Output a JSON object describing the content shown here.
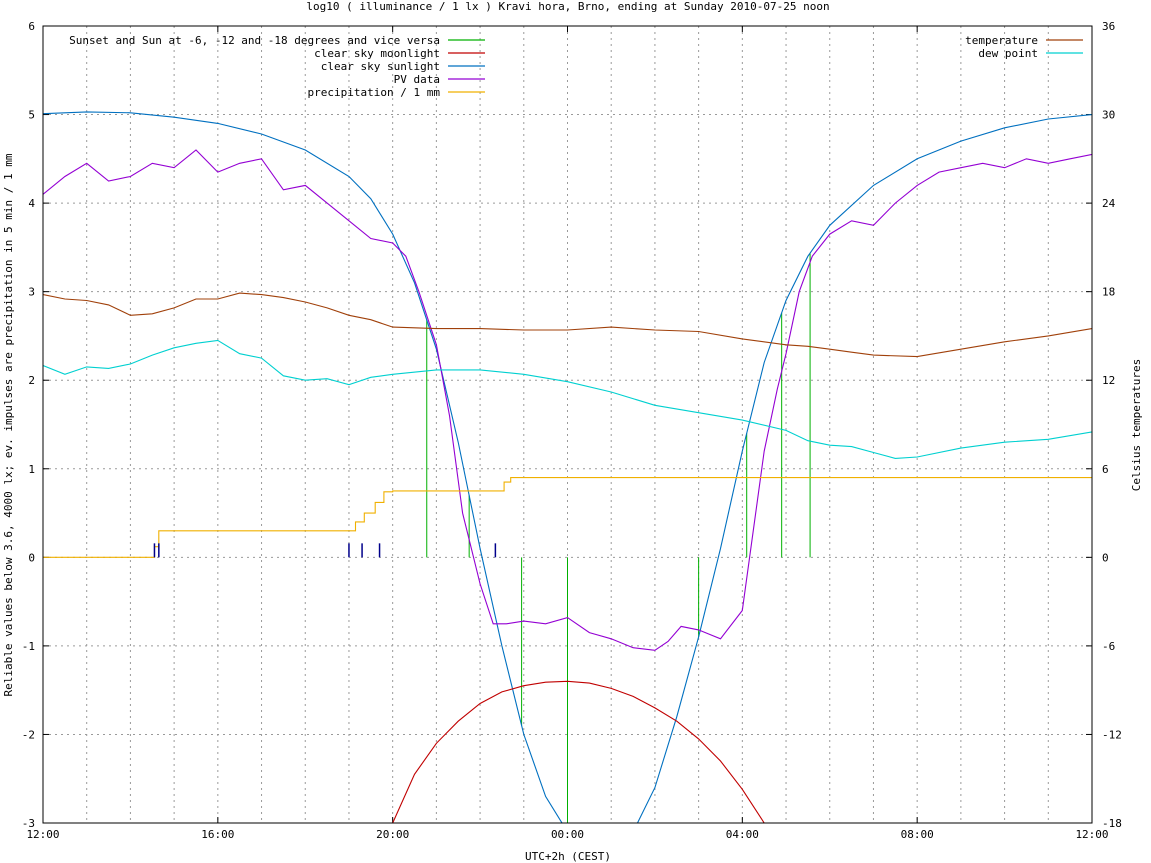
{
  "chart_data": {
    "type": "line",
    "title": "log10 ( illuminance / 1 lx ) Kravi hora, Brno, ending at Sunday 2010-07-25 noon",
    "xlabel": "UTC+2h (CEST)",
    "ylabel": "Reliable values below 3.6, 4000 lx; ev. impulses are precipitation in 5 min / 1 mm",
    "y2label": "Celsius temperatures",
    "x_unit": "hours from 12:00 start",
    "xlim": [
      0,
      24
    ],
    "ylim": [
      -3,
      6
    ],
    "y2lim": [
      -18,
      36
    ],
    "x_ticks": [
      {
        "x": 0,
        "label": "12:00"
      },
      {
        "x": 4,
        "label": "16:00"
      },
      {
        "x": 8,
        "label": "20:00"
      },
      {
        "x": 12,
        "label": "00:00"
      },
      {
        "x": 16,
        "label": "04:00"
      },
      {
        "x": 20,
        "label": "08:00"
      },
      {
        "x": 24,
        "label": "12:00"
      }
    ],
    "y_ticks": [
      "-3",
      "-2",
      "-1",
      "0",
      "1",
      "2",
      "3",
      "4",
      "5",
      "6"
    ],
    "y2_ticks": [
      "-18",
      "-12",
      "-6",
      "0",
      "6",
      "12",
      "18",
      "24",
      "30",
      "36"
    ],
    "grid": true,
    "legend_left": [
      {
        "name": "Sunset and Sun at -6, -12 and -18 degrees and vice versa",
        "color": "#00b000"
      },
      {
        "name": "clear sky moonlight",
        "color": "#c00000"
      },
      {
        "name": "clear sky sunlight",
        "color": "#0070c0"
      },
      {
        "name": "PV data",
        "color": "#9400d3"
      },
      {
        "name": "precipitation / 1 mm",
        "color": "#f0b000"
      }
    ],
    "legend_right": [
      {
        "name": "temperature",
        "color": "#a0400a"
      },
      {
        "name": "dew point",
        "color": "#00d0d0"
      }
    ],
    "series": [
      {
        "name": "clear sky sunlight",
        "color": "#0070c0",
        "axis": "left",
        "x": [
          0,
          1,
          2,
          3,
          4,
          5,
          6,
          7,
          7.5,
          8,
          8.5,
          9,
          9.5,
          10,
          10.5,
          11,
          11.5,
          12,
          12.5,
          13,
          13.5,
          14,
          14.5,
          15,
          15.5,
          16,
          16.5,
          17,
          17.5,
          18,
          19,
          20,
          21,
          22,
          23,
          24
        ],
        "y": [
          5.01,
          5.03,
          5.02,
          4.97,
          4.9,
          4.78,
          4.6,
          4.3,
          4.05,
          3.65,
          3.1,
          2.35,
          1.3,
          0.1,
          -1.0,
          -2.0,
          -2.7,
          -3.1,
          -3.5,
          -3.5,
          -3.1,
          -2.6,
          -1.8,
          -0.9,
          0.1,
          1.2,
          2.2,
          2.9,
          3.4,
          3.75,
          4.2,
          4.5,
          4.7,
          4.85,
          4.95,
          5.0
        ]
      },
      {
        "name": "clear sky moonlight",
        "color": "#c00000",
        "axis": "left",
        "x": [
          8,
          8.5,
          9,
          9.5,
          10,
          10.5,
          11,
          11.5,
          12,
          12.5,
          13,
          13.5,
          14,
          14.5,
          15,
          15.5,
          16,
          16.5
        ],
        "y": [
          -3.0,
          -2.45,
          -2.1,
          -1.85,
          -1.65,
          -1.52,
          -1.45,
          -1.41,
          -1.4,
          -1.42,
          -1.48,
          -1.57,
          -1.7,
          -1.85,
          -2.05,
          -2.3,
          -2.62,
          -3.0
        ]
      },
      {
        "name": "PV data",
        "color": "#9400d3",
        "axis": "left",
        "x": [
          0,
          0.5,
          1,
          1.5,
          2,
          2.5,
          3,
          3.5,
          4,
          4.5,
          5,
          5.5,
          6,
          6.5,
          7,
          7.5,
          8,
          8.3,
          8.6,
          9,
          9.3,
          9.6,
          10,
          10.3,
          10.6,
          11,
          11.5,
          12,
          12.5,
          13,
          13.5,
          14,
          14.3,
          14.6,
          15,
          15.5,
          16,
          16.5,
          16.8,
          17,
          17.3,
          17.6,
          18,
          18.5,
          19,
          19.5,
          20,
          20.5,
          21,
          21.5,
          22,
          22.5,
          23,
          23.5,
          24
        ],
        "y": [
          4.1,
          4.3,
          4.45,
          4.25,
          4.3,
          4.45,
          4.4,
          4.6,
          4.35,
          4.45,
          4.5,
          4.15,
          4.2,
          4.0,
          3.8,
          3.6,
          3.55,
          3.4,
          3.0,
          2.4,
          1.6,
          0.5,
          -0.3,
          -0.75,
          -0.75,
          -0.72,
          -0.75,
          -0.68,
          -0.85,
          -0.92,
          -1.02,
          -1.05,
          -0.95,
          -0.78,
          -0.82,
          -0.92,
          -0.6,
          1.2,
          1.9,
          2.3,
          3.0,
          3.4,
          3.65,
          3.8,
          3.75,
          4.0,
          4.2,
          4.35,
          4.4,
          4.45,
          4.4,
          4.5,
          4.45,
          4.5,
          4.55
        ]
      },
      {
        "name": "precipitation / 1 mm",
        "color": "#f0b000",
        "axis": "left",
        "x": [
          0,
          2.4,
          2.55,
          2.65,
          7.0,
          7.15,
          7.35,
          7.6,
          7.8,
          8.0,
          9.0,
          10.0,
          10.4,
          10.55,
          10.7,
          12.0,
          16.0,
          20.0,
          24.0
        ],
        "y": [
          0,
          0,
          0.12,
          0.3,
          0.3,
          0.4,
          0.5,
          0.62,
          0.74,
          0.75,
          0.75,
          0.75,
          0.75,
          0.85,
          0.9,
          0.9,
          0.9,
          0.9,
          0.9
        ]
      },
      {
        "name": "temperature",
        "color": "#a0400a",
        "axis": "right",
        "x": [
          0,
          0.5,
          1,
          1.5,
          2,
          2.5,
          3,
          3.5,
          4,
          4.5,
          5,
          5.5,
          6,
          6.5,
          7,
          7.5,
          8,
          9,
          10,
          11,
          12,
          13,
          14,
          15,
          16,
          17,
          17.5,
          18,
          18.5,
          19,
          20,
          21,
          22,
          23,
          24
        ],
        "y": [
          17.8,
          17.5,
          17.4,
          17.1,
          16.4,
          16.5,
          16.9,
          17.5,
          17.5,
          17.9,
          17.8,
          17.6,
          17.3,
          16.9,
          16.4,
          16.1,
          15.6,
          15.5,
          15.5,
          15.4,
          15.4,
          15.6,
          15.4,
          15.3,
          14.8,
          14.4,
          14.3,
          14.1,
          13.9,
          13.7,
          13.6,
          14.1,
          14.6,
          15.0,
          15.5
        ]
      },
      {
        "name": "dew point",
        "color": "#00d0d0",
        "axis": "right",
        "x": [
          0,
          0.5,
          1,
          1.5,
          2,
          2.5,
          3,
          3.5,
          4,
          4.5,
          5,
          5.5,
          6,
          6.5,
          7,
          7.5,
          8,
          9,
          10,
          11,
          12,
          13,
          14,
          15,
          16,
          17,
          17.5,
          18,
          18.5,
          19,
          19.5,
          20,
          21,
          22,
          23,
          24
        ],
        "y": [
          13.0,
          12.4,
          12.9,
          12.8,
          13.1,
          13.7,
          14.2,
          14.5,
          14.7,
          13.8,
          13.5,
          12.3,
          12.0,
          12.1,
          11.7,
          12.2,
          12.4,
          12.7,
          12.7,
          12.4,
          11.9,
          11.2,
          10.3,
          9.8,
          9.3,
          8.6,
          7.9,
          7.6,
          7.5,
          7.1,
          6.7,
          6.8,
          7.4,
          7.8,
          8.0,
          8.5
        ]
      }
    ],
    "sun_marks": {
      "color": "#00b000",
      "x": [
        8.78,
        9.75,
        10.95,
        12.0,
        15.0,
        16.1,
        16.9,
        17.55
      ]
    },
    "rain_impulses": {
      "color": "#00008b",
      "x": [
        2.55,
        2.65,
        7.0,
        7.3,
        7.7,
        10.35
      ]
    }
  }
}
